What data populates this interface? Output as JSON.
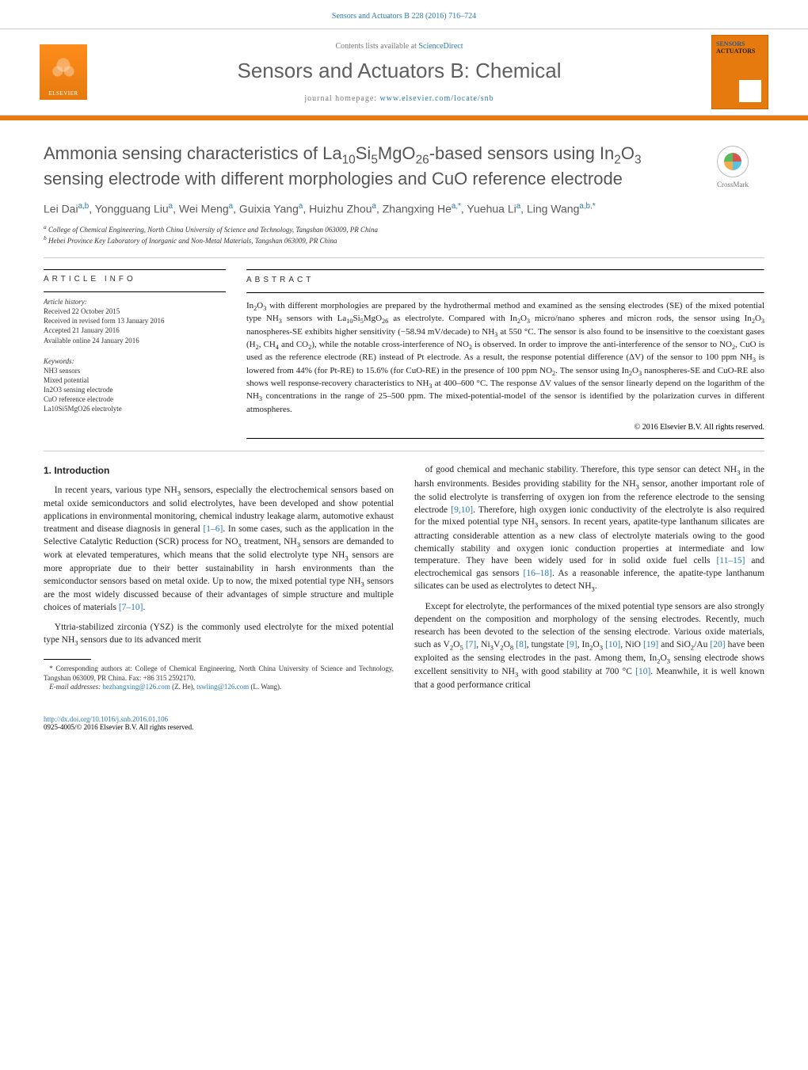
{
  "header": {
    "citation_link": "Sensors and Actuators B 228 (2016) 716–724",
    "avail_prefix": "Contents lists available at ",
    "avail_link": "ScienceDirect",
    "journal_title": "Sensors and Actuators B: Chemical",
    "homepage_prefix": "journal homepage: ",
    "homepage_link": "www.elsevier.com/locate/snb",
    "elsevier_label": "ELSEVIER",
    "cover_line1": "SENSORS",
    "cover_line2": "ACTUATORS",
    "accent_color": "#e67a0f",
    "link_color": "#2a7ab0"
  },
  "crossmark": {
    "label": "CrossMark"
  },
  "article": {
    "title_html": "Ammonia sensing characteristics of La<sub>10</sub>Si<sub>5</sub>MgO<sub>26</sub>-based sensors using In<sub>2</sub>O<sub>3</sub> sensing electrode with different morphologies and CuO reference electrode",
    "authors_html": "Lei Dai<sup>a,b</sup>, Yongguang Liu<sup>a</sup>, Wei Meng<sup>a</sup>, Guixia Yang<sup>a</sup>, Huizhu Zhou<sup>a</sup>, Zhangxing He<sup>a,*</sup>, Yuehua Li<sup>a</sup>, Ling Wang<sup>a,b,*</sup>",
    "affiliations": {
      "a": "College of Chemical Engineering, North China University of Science and Technology, Tangshan 063009, PR China",
      "b": "Hebei Province Key Laboratory of Inorganic and Non-Metal Materials, Tangshan 063009, PR China"
    }
  },
  "info": {
    "heading": "article info",
    "history_label": "Article history:",
    "received": "Received 22 October 2015",
    "revised": "Received in revised form 13 January 2016",
    "accepted": "Accepted 21 January 2016",
    "online": "Available online 24 January 2016",
    "keywords_label": "Keywords:",
    "keywords": [
      "NH3 sensors",
      "Mixed potential",
      "In2O3 sensing electrode",
      "CuO reference electrode",
      "La10Si5MgO26 electrolyte"
    ]
  },
  "abstract": {
    "heading": "abstract",
    "text_html": "In<sub>2</sub>O<sub>3</sub> with different morphologies are prepared by the hydrothermal method and examined as the sensing electrodes (SE) of the mixed potential type NH<sub>3</sub> sensors with La<sub>10</sub>Si<sub>5</sub>MgO<sub>26</sub> as electrolyte. Compared with In<sub>2</sub>O<sub>3</sub> micro/nano spheres and micron rods, the sensor using In<sub>2</sub>O<sub>3</sub> nanospheres-SE exhibits higher sensitivity (−58.94 mV/decade) to NH<sub>3</sub> at 550 °C. The sensor is also found to be insensitive to the coexistant gases (H<sub>2</sub>, CH<sub>4</sub> and CO<sub>2</sub>), while the notable cross-interference of NO<sub>2</sub> is observed. In order to improve the anti-interference of the sensor to NO<sub>2</sub>, CuO is used as the reference electrode (RE) instead of Pt electrode. As a result, the response potential difference (ΔV) of the sensor to 100 ppm NH<sub>3</sub> is lowered from 44% (for Pt-RE) to 15.6% (for CuO-RE) in the presence of 100 ppm NO<sub>2</sub>. The sensor using In<sub>2</sub>O<sub>3</sub> nanospheres-SE and CuO-RE also shows well response-recovery characteristics to NH<sub>3</sub> at 400–600 °C. The response ΔV values of the sensor linearly depend on the logarithm of the NH<sub>3</sub> concentrations in the range of 25–500 ppm. The mixed-potential-model of the sensor is identified by the polarization curves in different atmospheres.",
    "copyright": "© 2016 Elsevier B.V. All rights reserved."
  },
  "body": {
    "section_heading": "1. Introduction",
    "p1_html": "In recent years, various type NH<sub>3</sub> sensors, especially the electrochemical sensors based on metal oxide semiconductors and solid electrolytes, have been developed and show potential applications in environmental monitoring, chemical industry leakage alarm, automotive exhaust treatment and disease diagnosis in general <a>[1–6]</a>. In some cases, such as the application in the Selective Catalytic Reduction (SCR) process for NO<sub>x</sub> treatment, NH<sub>3</sub> sensors are demanded to work at elevated temperatures, which means that the solid electrolyte type NH<sub>3</sub> sensors are more appropriate due to their better sustainability in harsh environments than the semiconductor sensors based on metal oxide. Up to now, the mixed potential type NH<sub>3</sub> sensors are the most widely discussed because of their advantages of simple structure and multiple choices of materials <a>[7–10]</a>.",
    "p2_html": "Yttria-stabilized zirconia (YSZ) is the commonly used electrolyte for the mixed potential type NH<sub>3</sub> sensors due to its advanced merit",
    "p3_html": "of good chemical and mechanic stability. Therefore, this type sensor can detect NH<sub>3</sub> in the harsh environments. Besides providing stability for the NH<sub>3</sub> sensor, another important role of the solid electrolyte is transferring of oxygen ion from the reference electrode to the sensing electrode <a>[9,10]</a>. Therefore, high oxygen ionic conductivity of the electrolyte is also required for the mixed potential type NH<sub>3</sub> sensors. In recent years, apatite-type lanthanum silicates are attracting considerable attention as a new class of electrolyte materials owing to the good chemically stability and oxygen ionic conduction properties at intermediate and low temperature. They have been widely used for in solid oxide fuel cells <a>[11–15]</a> and electrochemical gas sensors <a>[16–18]</a>. As a reasonable inference, the apatite-type lanthanum silicates can be used as electrolytes to detect NH<sub>3</sub>.",
    "p4_html": "Except for electrolyte, the performances of the mixed potential type sensors are also strongly dependent on the composition and morphology of the sensing electrodes. Recently, much research has been devoted to the selection of the sensing electrode. Various oxide materials, such as V<sub>2</sub>O<sub>5</sub> <a>[7]</a>, Ni<sub>3</sub>V<sub>2</sub>O<sub>8</sub> <a>[8]</a>, tungstate <a>[9]</a>, In<sub>2</sub>O<sub>3</sub> <a>[10]</a>, NiO <a>[19]</a> and SiO<sub>2</sub>/Au <a>[20]</a> have been exploited as the sensing electrodes in the past. Among them, In<sub>2</sub>O<sub>3</sub> sensing electrode shows excellent sensitivity to NH<sub>3</sub> with good stability at 700 °C <a>[10]</a>. Meanwhile, it is well known that a good performance critical"
  },
  "footnotes": {
    "corr_html": "* Corresponding authors at: College of Chemical Engineering, North China University of Science and Technology, Tangshan 063009, PR China. Fax: +86 315 2592170.",
    "email_label": "E-mail addresses: ",
    "email1": "hezhangxing@126.com",
    "email1_name": " (Z. He), ",
    "email2": "tswling@126.com",
    "email2_name": " (L. Wang)."
  },
  "bottom": {
    "doi": "http://dx.doi.org/10.1016/j.snb.2016.01.106",
    "issn_line": "0925-4005/© 2016 Elsevier B.V. All rights reserved."
  }
}
